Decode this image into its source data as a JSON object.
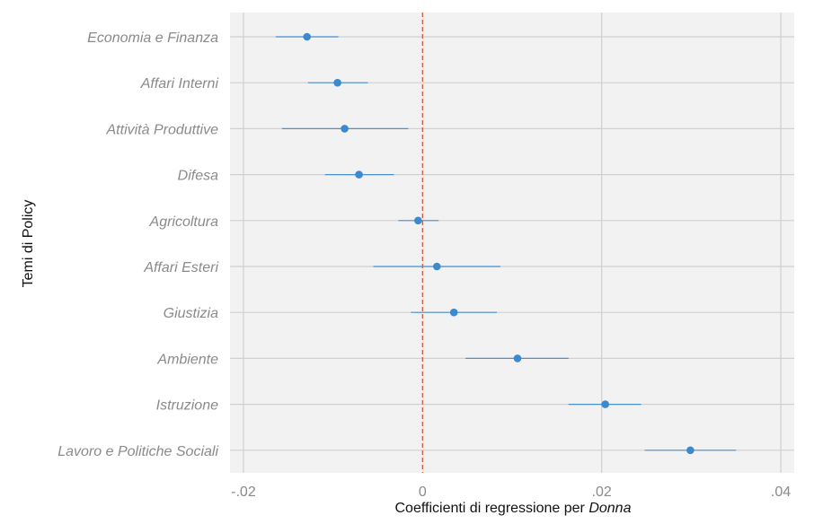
{
  "chart_data": {
    "type": "scatter",
    "subtype": "coefficient-plot",
    "xlabel_prefix": "Coefficienti di regressione per ",
    "xlabel_emphasis": "Donna",
    "ylabel": "Temi di Policy",
    "xlim": [
      -0.0215,
      0.0415
    ],
    "x_ticks": [
      -0.02,
      0,
      0.02,
      0.04
    ],
    "x_tick_labels": [
      "-.02",
      "0",
      ".02",
      ".04"
    ],
    "reference_line": 0,
    "grid": true,
    "colors": {
      "point": "#3d89cf",
      "ci": "#4a90d4",
      "reference": "#d5592e",
      "panel": "#f2f2f2",
      "grid": "#d0d0d0"
    },
    "categories": [
      "Economia e Finanza",
      "Affari Interni",
      "Attività Produttive",
      "Difesa",
      "Agricoltura",
      "Affari Esteri",
      "Giustizia",
      "Ambiente",
      "Istruzione",
      "Lavoro e Politiche Sociali"
    ],
    "estimates": [
      -0.0129,
      -0.0095,
      -0.0087,
      -0.0071,
      -0.0005,
      0.0016,
      0.0035,
      0.0106,
      0.0204,
      0.0299
    ],
    "ci_low": [
      -0.0164,
      -0.0128,
      -0.0157,
      -0.0109,
      -0.0027,
      -0.0055,
      -0.0013,
      0.0048,
      0.0163,
      0.0248
    ],
    "ci_high": [
      -0.0094,
      -0.0061,
      -0.0016,
      -0.0032,
      0.0018,
      0.0087,
      0.0083,
      0.0163,
      0.0244,
      0.035
    ]
  }
}
